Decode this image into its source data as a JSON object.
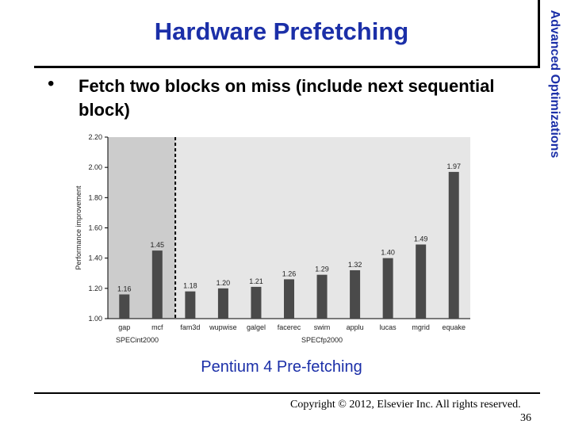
{
  "slide": {
    "title": "Hardware Prefetching",
    "side_label": "Advanced Optimizations",
    "bullet_marker": "•",
    "bullet": "Fetch two blocks on miss (include next sequential block)",
    "caption": "Pentium 4 Pre-fetching",
    "copyright": "Copyright © 2012, Elsevier Inc. All rights reserved.",
    "page_number": "36",
    "title_color": "#1b2fa8"
  },
  "chart_data": {
    "type": "bar",
    "ylabel": "Performance improvement",
    "ylim": [
      1.0,
      2.2
    ],
    "yticks": [
      "1.00",
      "1.20",
      "1.40",
      "1.60",
      "1.80",
      "2.00",
      "2.20"
    ],
    "categories": [
      "gap",
      "mcf",
      "fam3d",
      "wupwise",
      "galgel",
      "facerec",
      "swim",
      "applu",
      "lucas",
      "mgrid",
      "equake"
    ],
    "values": [
      1.16,
      1.45,
      1.18,
      1.2,
      1.21,
      1.26,
      1.29,
      1.32,
      1.4,
      1.49,
      1.97
    ],
    "value_labels": [
      "1.16",
      "1.45",
      "1.18",
      "1.20",
      "1.21",
      "1.26",
      "1.29",
      "1.32",
      "1.40",
      "1.49",
      "1.97"
    ],
    "groups": [
      {
        "label": "SPECint2000",
        "count": 2
      },
      {
        "label": "SPECfp2000",
        "count": 9
      }
    ],
    "bar_color": "#4a4a4a",
    "int_background": "#cccccc",
    "fp_background": "#e6e6e6"
  }
}
